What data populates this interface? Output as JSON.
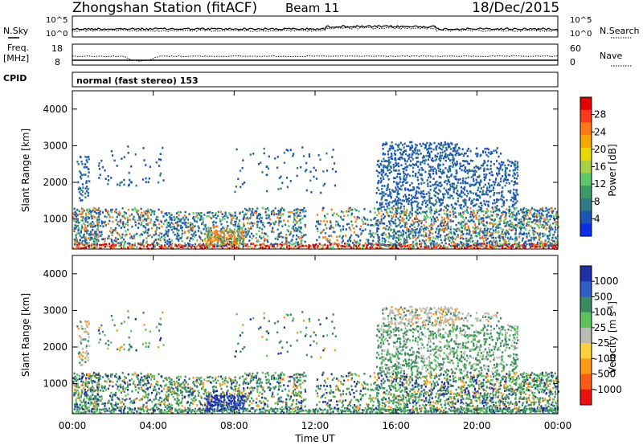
{
  "header": {
    "station": "Zhongshan Station (fitACF)",
    "beam": "Beam 11",
    "date": "18/Dec/2015"
  },
  "noise_panel": {
    "left_label": "N.Sky",
    "right_label": "N.Search",
    "ticks_left": [
      "10^5",
      "10^0"
    ],
    "ticks_right": [
      "10^5",
      "10^0"
    ]
  },
  "freq_panel": {
    "left_label_line1": "Freq.",
    "left_label_line2": "[MHz]",
    "ticks_left": [
      "18",
      "8"
    ],
    "right_label": "Nave",
    "ticks_right": [
      "60",
      "0"
    ]
  },
  "cpid_panel": {
    "label": "CPID",
    "mode_text": "normal (fast stereo) 153"
  },
  "axes": {
    "y_label": "Slant Range [km]",
    "y_ticks": [
      "1000",
      "2000",
      "3000",
      "4000"
    ],
    "x_label": "Time UT",
    "x_ticks": [
      "00:00",
      "04:00",
      "08:00",
      "12:00",
      "16:00",
      "20:00",
      "00:00"
    ]
  },
  "chart_data": [
    {
      "type": "heatmap",
      "title": "Power [dB]",
      "x_range_hours": [
        0,
        24
      ],
      "y_range_km": [
        180,
        4500
      ],
      "colorbar_label": "Power [dB]",
      "colorbar_ticks": [
        "28",
        "24",
        "20",
        "16",
        "12",
        "8",
        "4"
      ],
      "colorbar_colors": [
        "#e40000",
        "#ff3a1c",
        "#ff7a12",
        "#f7a800",
        "#e8d800",
        "#a6d04a",
        "#5ec86a",
        "#3a9a6a",
        "#2f7a86",
        "#1c56b4",
        "#0a2fe6"
      ]
    },
    {
      "type": "heatmap",
      "title": "Velocity [m s^-1]",
      "x_range_hours": [
        0,
        24
      ],
      "y_range_km": [
        180,
        4500
      ],
      "colorbar_label": "Velocity [m s",
      "colorbar_label_sup": "-1",
      "colorbar_label_end": "]",
      "colorbar_ticks": [
        "1000",
        "500",
        "100",
        "25",
        "-25",
        "-100",
        "-500",
        "-1000"
      ],
      "colorbar_colors": [
        "#1e2fa8",
        "#2e5dc8",
        "#3a8a62",
        "#5cc25a",
        "#bbbbb5",
        "#ffd23a",
        "#ff9a18",
        "#ff5a14",
        "#e81010"
      ]
    }
  ]
}
